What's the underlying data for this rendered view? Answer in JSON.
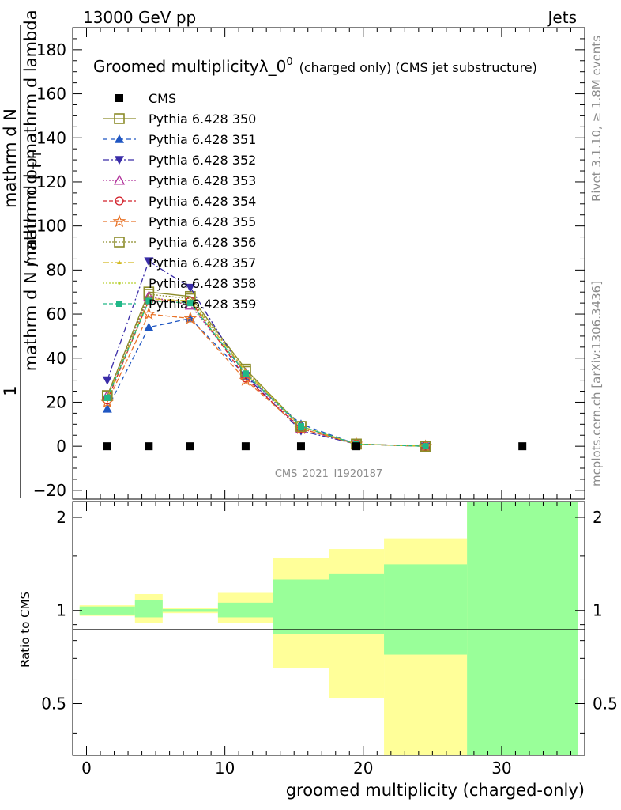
{
  "header": {
    "energy_label": "13000 GeV pp",
    "category_label": "Jets",
    "watermark": "CMS_2021_I1920187",
    "rivet_label": "Rivet 3.1.10, ≥ 1.8M events",
    "mcplots_label": "mcplots.cern.ch [arXiv:1306.3436]"
  },
  "chart_data": {
    "type": "line",
    "title_main": "Groomed multiplicityλ_0",
    "title_sup": "0",
    "title_sub": "(charged only) (CMS jet substructure)",
    "xlabel": "groomed multiplicity (charged-only)",
    "ylabel_parts": [
      "1",
      "mathrm d N / mathrm d p",
      "T",
      "mathrm d N",
      "mathrm d p",
      "T",
      "mathrm d lambda"
    ],
    "ratio_ylabel": "Ratio to CMS",
    "xlim": [
      -1,
      36
    ],
    "ylim": [
      -24,
      190
    ],
    "ratio_ylim": [
      0.34,
      2.25
    ],
    "x_ticks": [
      0,
      10,
      20,
      30
    ],
    "x_tick_labels": [
      "0",
      "10",
      "20",
      "30"
    ],
    "y_ticks": [
      -20,
      0,
      20,
      40,
      60,
      80,
      100,
      120,
      140,
      160,
      180
    ],
    "y_tick_labels": [
      "−20",
      "0",
      "20",
      "40",
      "60",
      "80",
      "100",
      "120",
      "140",
      "160",
      "180"
    ],
    "ratio_ticks": [
      0.5,
      1,
      2
    ],
    "ratio_tick_labels": [
      "0.5",
      "1",
      "2"
    ],
    "bin_edges": [
      -0.5,
      3.5,
      5.5,
      9.5,
      13.5,
      17.5,
      21.5,
      27.5,
      35.5
    ],
    "x": [
      1.5,
      4.5,
      7.5,
      11.5,
      15.5,
      19.5,
      24.5
    ],
    "cms": {
      "name": "CMS",
      "x": [
        1.5,
        4.5,
        7.5,
        11.5,
        15.5,
        19.5,
        31.5
      ],
      "values": [
        0,
        0,
        0,
        0,
        0,
        0,
        0
      ],
      "color": "#000000"
    },
    "ratio_band_green": [
      [
        0.97,
        1.03
      ],
      [
        0.95,
        1.08
      ],
      [
        0.99,
        1.01
      ],
      [
        0.95,
        1.06
      ],
      [
        0.84,
        1.26
      ],
      [
        0.84,
        1.31
      ],
      [
        0.72,
        1.41
      ],
      [
        0.34,
        2.25
      ]
    ],
    "ratio_band_yellow": [
      [
        0.96,
        1.04
      ],
      [
        0.91,
        1.13
      ],
      [
        0.98,
        1.02
      ],
      [
        0.91,
        1.14
      ],
      [
        0.65,
        1.48
      ],
      [
        0.52,
        1.58
      ],
      [
        0.34,
        1.71
      ],
      [
        0.34,
        2.25
      ]
    ],
    "series": [
      {
        "name": "Pythia 6.428 350",
        "color": "#8c8c2a",
        "marker": "square-open",
        "dash": "",
        "values": [
          23,
          70,
          68,
          35,
          9,
          1,
          0
        ]
      },
      {
        "name": "Pythia 6.428 351",
        "color": "#1f56c2",
        "marker": "triangle-up",
        "dash": "6,4",
        "values": [
          17,
          54,
          58,
          32,
          10,
          1,
          0
        ]
      },
      {
        "name": "Pythia 6.428 352",
        "color": "#3a2ca8",
        "marker": "triangle-down",
        "dash": "8,3,2,3",
        "values": [
          30,
          84,
          72,
          32,
          7,
          1,
          0
        ]
      },
      {
        "name": "Pythia 6.428 353",
        "color": "#b0309a",
        "marker": "triangle-up-open",
        "dash": "2,2",
        "values": [
          23,
          68,
          64,
          33,
          8,
          1,
          0
        ]
      },
      {
        "name": "Pythia 6.428 354",
        "color": "#d2202a",
        "marker": "circle-open",
        "dash": "5,3",
        "values": [
          21,
          66,
          66,
          31,
          8,
          1,
          0
        ]
      },
      {
        "name": "Pythia 6.428 355",
        "color": "#e8742a",
        "marker": "star-open",
        "dash": "6,3",
        "values": [
          20,
          60,
          58,
          30,
          8,
          1,
          0
        ]
      },
      {
        "name": "Pythia 6.428 356",
        "color": "#8c8c2a",
        "marker": "square-open",
        "dash": "2,2",
        "values": [
          23,
          69,
          67,
          34,
          9,
          1,
          0
        ]
      },
      {
        "name": "Pythia 6.428 357",
        "color": "#d2b820",
        "marker": "tri-small",
        "dash": "8,3,2,3",
        "values": [
          22,
          67,
          66,
          34,
          9,
          1,
          0
        ]
      },
      {
        "name": "Pythia 6.428 358",
        "color": "#b8d030",
        "marker": "dot",
        "dash": "2,2",
        "values": [
          22,
          66,
          65,
          33,
          9,
          1,
          0
        ]
      },
      {
        "name": "Pythia 6.428 359",
        "color": "#20b888",
        "marker": "square-filled",
        "dash": "5,3",
        "values": [
          22,
          66,
          65,
          33,
          9,
          1,
          0
        ]
      }
    ]
  }
}
